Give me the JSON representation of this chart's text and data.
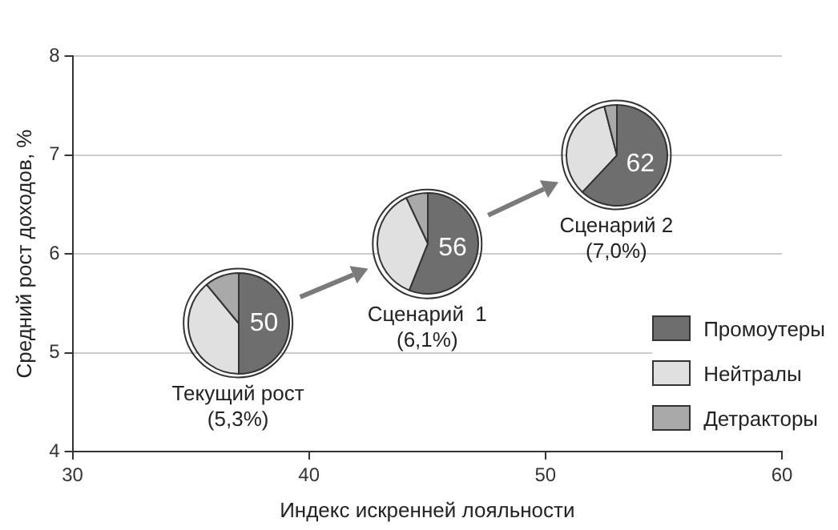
{
  "chart_data": [
    {
      "type": "scatter",
      "xlabel": "Индекс искренней лояльности",
      "ylabel": "Средний рост доходов, %",
      "xlim": [
        30,
        60
      ],
      "xticks": [
        30,
        40,
        50,
        60
      ],
      "ylim": [
        4,
        8
      ],
      "yticks": [
        4,
        5,
        6,
        7,
        8
      ],
      "grid": "y",
      "x": [
        37,
        45,
        53
      ],
      "values": [
        5.3,
        6.1,
        7.0
      ],
      "color": "#333333",
      "annotations": [
        {
          "text": "Текущий рост\n(5,3%)",
          "x": 37,
          "y": 5.3
        },
        {
          "text": "Сценарий  1\n(6,1%)",
          "x": 45,
          "y": 6.1
        },
        {
          "text": "Сценарий 2\n(7,0%)",
          "x": 53,
          "y": 7.0
        }
      ]
    },
    {
      "type": "pie",
      "categories": [
        "Промоутеры",
        "Нейтралы",
        "Детракторы"
      ],
      "values": [
        50,
        39,
        11
      ],
      "colors": [
        "#6e6e6e",
        "#e0e0e0",
        "#a9a9a9"
      ],
      "value_labels": [
        "50",
        null,
        null
      ],
      "legend": "bottom right"
    },
    {
      "type": "pie",
      "categories": [
        null,
        null,
        null
      ],
      "values": [
        56,
        37,
        7
      ],
      "colors": [
        "#6e6e6e",
        "#e0e0e0",
        "#a9a9a9"
      ],
      "value_labels": [
        "56",
        null,
        null
      ]
    },
    {
      "type": "pie",
      "categories": [
        null,
        null,
        null
      ],
      "values": [
        62,
        34,
        4
      ],
      "colors": [
        "#6e6e6e",
        "#e0e0e0",
        "#a9a9a9"
      ],
      "value_labels": [
        "62",
        null,
        null
      ]
    }
  ]
}
